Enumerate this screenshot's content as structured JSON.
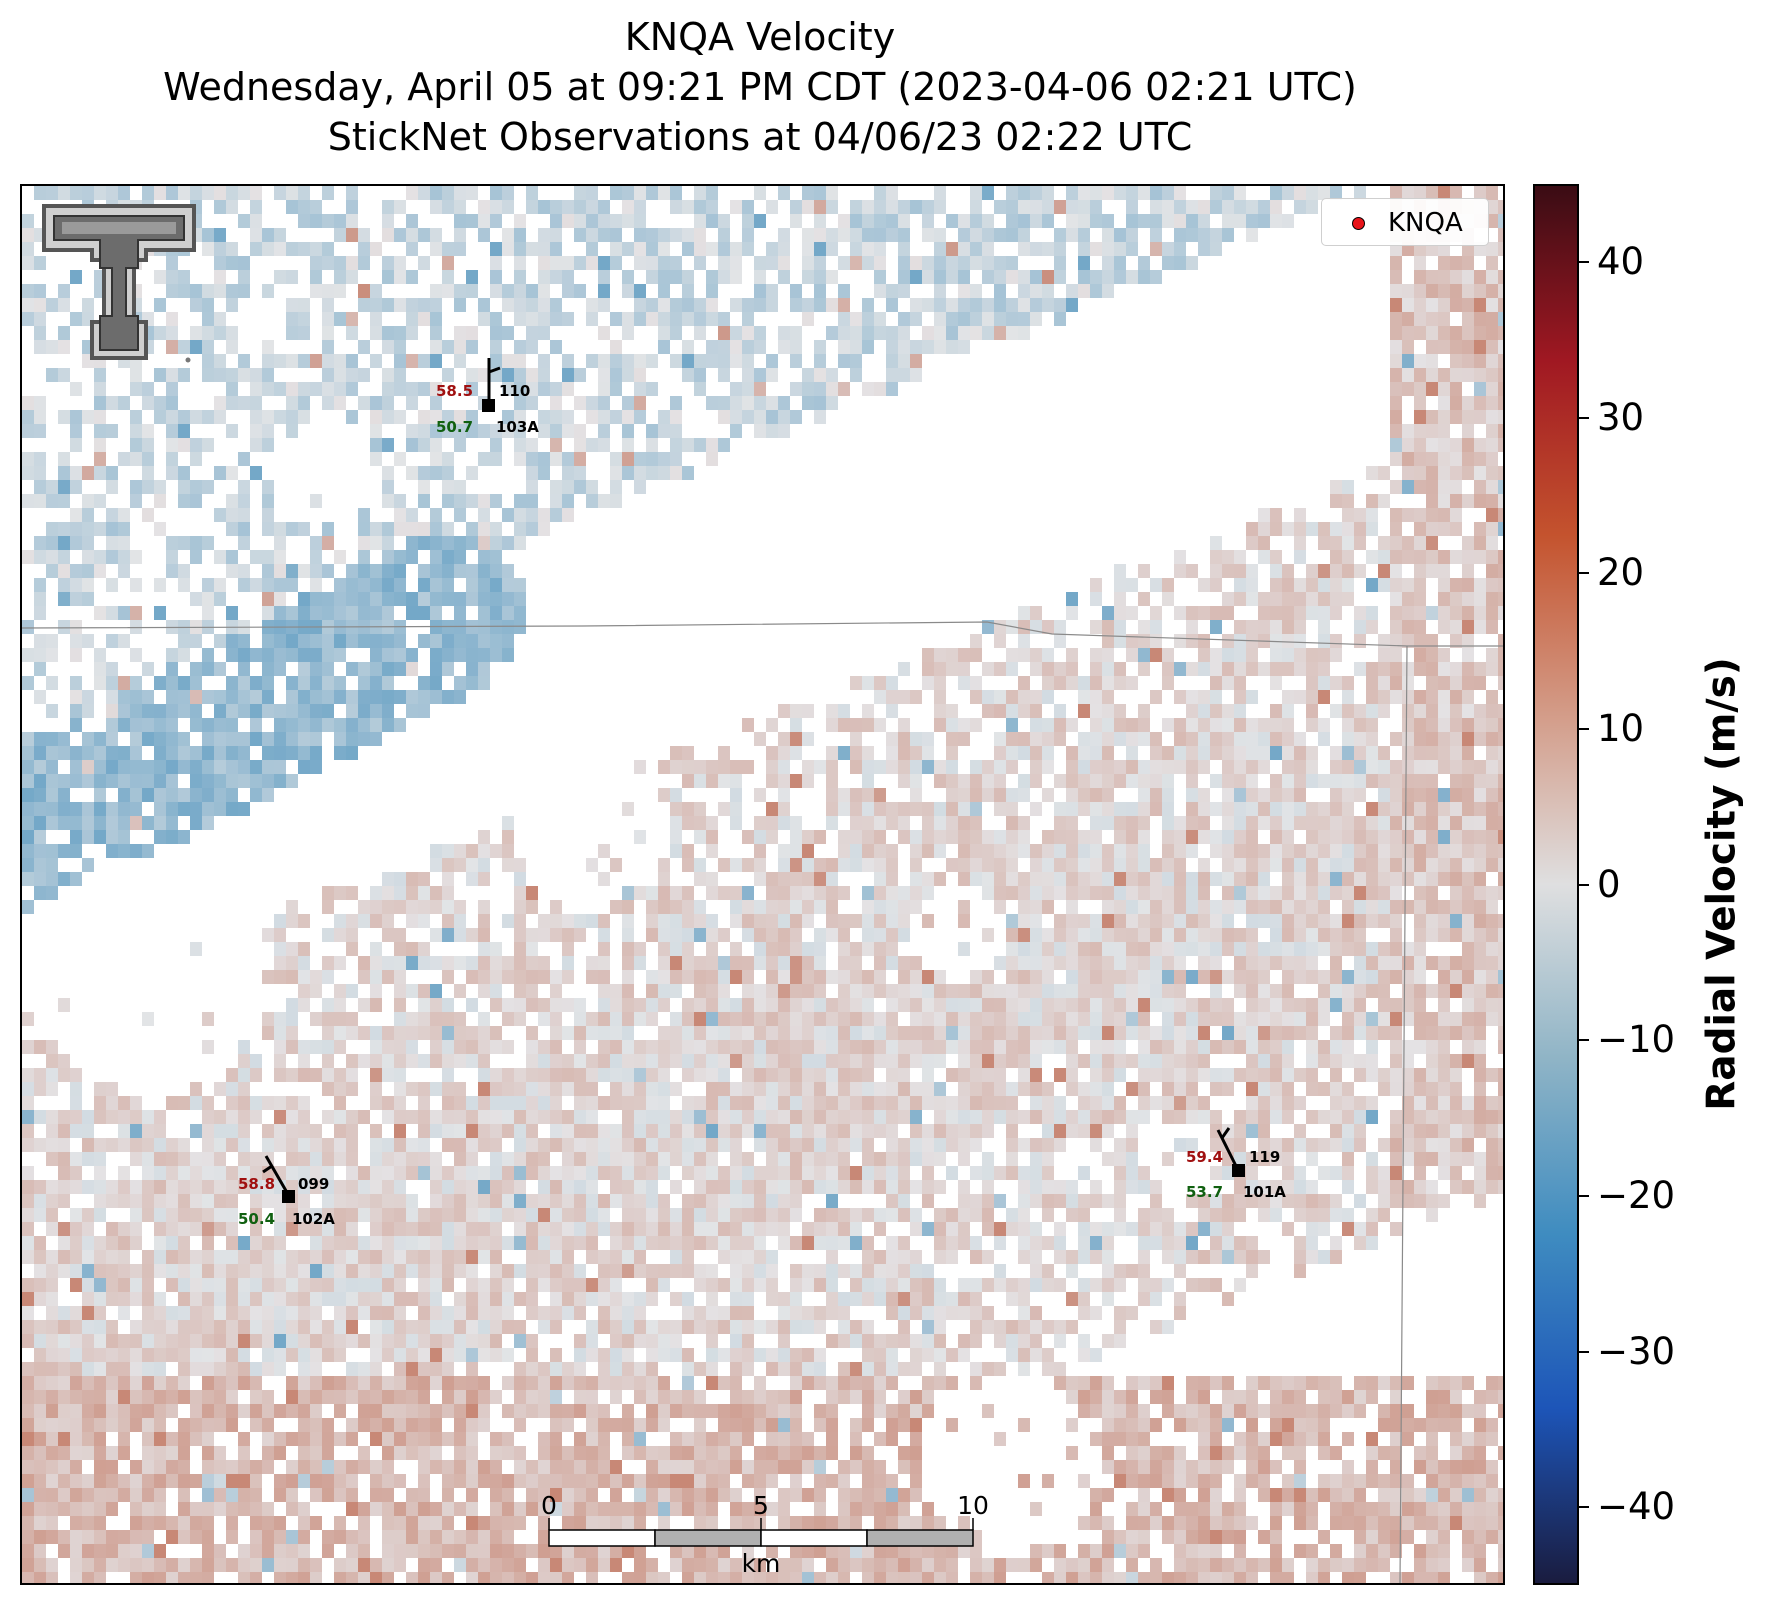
{
  "title": {
    "line1": "KNQA Velocity",
    "line2": "Wednesday, April 05 at 09:21 PM CDT (2023-04-06 02:21 UTC)",
    "line3": "StickNet Observations at 04/06/23 02:22 UTC"
  },
  "legend": {
    "label": "KNQA",
    "marker_color": "#e8141a"
  },
  "colorbar": {
    "label": "Radial Velocity (m/s)",
    "range": [
      -45,
      45
    ],
    "ticks": [
      "40",
      "30",
      "20",
      "10",
      "0",
      "−10",
      "−20",
      "−30",
      "−40"
    ],
    "colors": [
      "#1a1c3f",
      "#1d55b8",
      "#3f8cc0",
      "#8fb4c6",
      "#dfdfe0",
      "#d39a86",
      "#c4532e",
      "#a01822",
      "#3a0c14"
    ]
  },
  "stations": [
    {
      "id": "103A",
      "temp": "58.5",
      "dewpoint": "50.7",
      "direction": "110"
    },
    {
      "id": "102A",
      "temp": "58.8",
      "dewpoint": "50.4",
      "direction": "099"
    },
    {
      "id": "101A",
      "temp": "59.4",
      "dewpoint": "53.7",
      "direction": "119"
    }
  ],
  "scale_bar": {
    "labels": [
      "0",
      "5",
      "10"
    ],
    "unit": "km"
  },
  "logo": {
    "name": "Texas Tech double T"
  },
  "text_colors": {
    "temperature": "#a01010",
    "dewpoint": "#106010"
  }
}
